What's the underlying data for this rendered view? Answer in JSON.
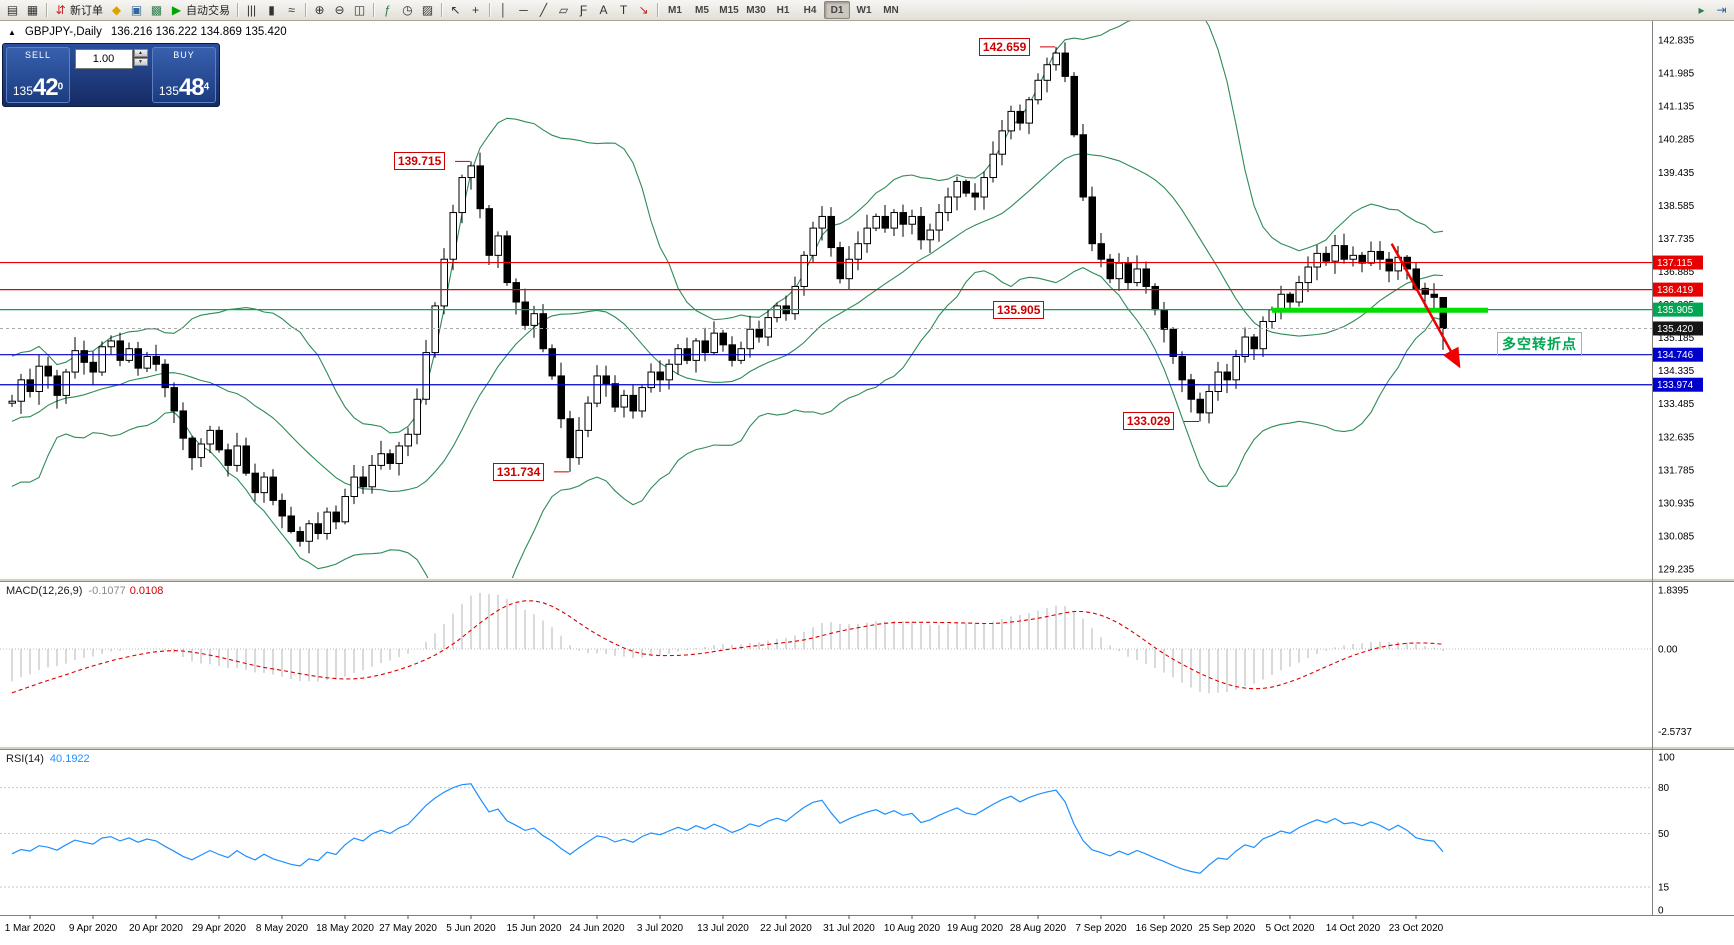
{
  "toolbar": {
    "items": [
      {
        "name": "new-chart-icon",
        "glyph": "▤"
      },
      {
        "name": "profiles-icon",
        "glyph": "▦"
      },
      {
        "sep": true
      },
      {
        "name": "new-order-button",
        "glyph": "⇵",
        "glyph_color": "#cc2222",
        "label": "新订单"
      },
      {
        "name": "metaeditor-icon",
        "glyph": "◆",
        "glyph_color": "#d9a300"
      },
      {
        "name": "terminal-icon",
        "glyph": "▣",
        "glyph_color": "#336699"
      },
      {
        "name": "strategy-tester-icon",
        "glyph": "▩",
        "glyph_color": "#2e7d4f"
      },
      {
        "name": "autotrading-button",
        "glyph": "▶",
        "glyph_color": "#00a400",
        "label": "自动交易"
      },
      {
        "sep": true
      },
      {
        "name": "bar-chart-icon",
        "glyph": "|||"
      },
      {
        "name": "candlestick-chart-icon",
        "glyph": "▮"
      },
      {
        "name": "line-chart-icon",
        "glyph": "≈"
      },
      {
        "sep": true
      },
      {
        "name": "zoom-in-icon",
        "glyph": "⊕"
      },
      {
        "name": "zoom-out-icon",
        "glyph": "⊖"
      },
      {
        "name": "tile-windows-icon",
        "glyph": "◫"
      },
      {
        "sep": true
      },
      {
        "name": "indicators-icon",
        "glyph": "ƒ",
        "glyph_color": "#2e7d4f"
      },
      {
        "name": "periods-icon",
        "glyph": "◷"
      },
      {
        "name": "templates-icon",
        "glyph": "▨"
      },
      {
        "sep": true
      },
      {
        "name": "cursor-icon",
        "glyph": "↖"
      },
      {
        "name": "crosshair-icon",
        "glyph": "+"
      },
      {
        "sep": true
      },
      {
        "name": "vertical-line-icon",
        "glyph": "│"
      },
      {
        "name": "horizontal-line-icon",
        "glyph": "─"
      },
      {
        "name": "trendline-icon",
        "glyph": "╱"
      },
      {
        "name": "channel-icon",
        "glyph": "▱"
      },
      {
        "name": "fibonacci-icon",
        "glyph": "Ƒ"
      },
      {
        "name": "text-icon",
        "glyph": "A"
      },
      {
        "name": "text-label-icon",
        "glyph": "T"
      },
      {
        "name": "arrows-icon",
        "glyph": "↘",
        "glyph_color": "#cc2222"
      },
      {
        "sep": true
      }
    ],
    "timeframes": [
      "M1",
      "M5",
      "M15",
      "M30",
      "H1",
      "H4",
      "D1",
      "W1",
      "MN"
    ],
    "active_timeframe": "D1",
    "right_items": [
      {
        "name": "auto-scroll-icon",
        "glyph": "▸",
        "glyph_color": "#2e7d4f"
      },
      {
        "name": "chart-shift-icon",
        "glyph": "⇥",
        "glyph_color": "#336699"
      }
    ]
  },
  "chart": {
    "collapse_icon": "▲",
    "symbol_period": "GBPJPY-,Daily",
    "ohlc_text": "136.216 136.222 134.869 135.420"
  },
  "trade_panel": {
    "sell_label": "SELL",
    "buy_label": "BUY",
    "volume": "1.00",
    "spin_up": "▲",
    "spin_down": "▼",
    "sell_price": {
      "prefix": "135",
      "big": "42",
      "sup": "0"
    },
    "buy_price": {
      "prefix": "135",
      "big": "48",
      "sup": "4"
    }
  },
  "indicators": {
    "macd": {
      "name": "MACD(12,26,9)",
      "main_value": "-0.1077",
      "signal_value": "0.0108",
      "axis": [
        {
          "v": 1.8395,
          "text": "1.8395"
        },
        {
          "v": 0,
          "text": "0.00"
        },
        {
          "v": -2.5737,
          "text": "-2.5737"
        }
      ],
      "histogram_color": "#b4b4b4",
      "signal_color": "#dd0000"
    },
    "rsi": {
      "name": "RSI(14)",
      "value": "40.1922",
      "axis": [
        {
          "v": 100,
          "text": "100"
        },
        {
          "v": 80,
          "text": "80"
        },
        {
          "v": 50,
          "text": "50"
        },
        {
          "v": 15,
          "text": "15"
        },
        {
          "v": 0,
          "text": "0"
        }
      ],
      "levels": [
        80,
        50,
        15
      ],
      "line_color": "#1e90ff"
    }
  },
  "price_axis": {
    "labels": [
      "142.835",
      "141.985",
      "141.135",
      "140.285",
      "139.435",
      "138.585",
      "137.735",
      "136.885",
      "136.035",
      "135.185",
      "134.335",
      "133.485",
      "132.635",
      "131.785",
      "130.935",
      "130.085",
      "129.235"
    ],
    "tags": [
      {
        "text": "137.115",
        "price": 137.115,
        "bg": "#e60000",
        "fg": "#ffffff"
      },
      {
        "text": "136.419",
        "price": 136.419,
        "bg": "#e60000",
        "fg": "#ffffff"
      },
      {
        "text": "135.905",
        "price": 135.905,
        "bg": "#00a651",
        "fg": "#ffffff"
      },
      {
        "text": "135.420",
        "price": 135.42,
        "bg": "#161616",
        "fg": "#ffffff"
      },
      {
        "text": "134.746",
        "price": 134.746,
        "bg": "#0000cc",
        "fg": "#ffffff"
      },
      {
        "text": "133.974",
        "price": 133.974,
        "bg": "#0000cc",
        "fg": "#ffffff"
      }
    ]
  },
  "time_axis": {
    "labels": [
      {
        "text": "1 Mar 2020",
        "i": 2
      },
      {
        "text": "9 Apr 2020",
        "i": 9
      },
      {
        "text": "20 Apr 2020",
        "i": 16
      },
      {
        "text": "29 Apr 2020",
        "i": 23
      },
      {
        "text": "8 May 2020",
        "i": 30
      },
      {
        "text": "18 May 2020",
        "i": 37
      },
      {
        "text": "27 May 2020",
        "i": 44
      },
      {
        "text": "5 Jun 2020",
        "i": 51
      },
      {
        "text": "15 Jun 2020",
        "i": 58
      },
      {
        "text": "24 Jun 2020",
        "i": 65
      },
      {
        "text": "3 Jul 2020",
        "i": 72
      },
      {
        "text": "13 Jul 2020",
        "i": 79
      },
      {
        "text": "22 Jul 2020",
        "i": 86
      },
      {
        "text": "31 Jul 2020",
        "i": 93
      },
      {
        "text": "10 Aug 2020",
        "i": 100
      },
      {
        "text": "19 Aug 2020",
        "i": 107
      },
      {
        "text": "28 Aug 2020",
        "i": 114
      },
      {
        "text": "7 Sep 2020",
        "i": 121
      },
      {
        "text": "16 Sep 2020",
        "i": 128
      },
      {
        "text": "25 Sep 2020",
        "i": 135
      },
      {
        "text": "5 Oct 2020",
        "i": 142
      },
      {
        "text": "14 Oct 2020",
        "i": 149
      },
      {
        "text": "23 Oct 2020",
        "i": 156
      }
    ]
  },
  "annotations": {
    "callouts": [
      {
        "text": "142.659",
        "i": 116,
        "price": 142.659,
        "side": "left"
      },
      {
        "text": "139.715",
        "i": 51,
        "price": 139.715,
        "side": "left"
      },
      {
        "text": "135.905",
        "i": 109,
        "price": 135.905,
        "side": "on"
      },
      {
        "text": "133.029",
        "i": 132,
        "price": 133.029,
        "side": "left"
      },
      {
        "text": "131.734",
        "i": 62,
        "price": 131.734,
        "side": "left"
      }
    ],
    "hlines": [
      {
        "price": 137.115,
        "color": "#e60000"
      },
      {
        "price": 136.419,
        "color": "#e60000"
      },
      {
        "price": 135.905,
        "color": "#00a651"
      },
      {
        "price": 134.746,
        "color": "#0000cc"
      },
      {
        "price": 133.974,
        "color": "#0000cc"
      }
    ],
    "bid_line": {
      "price": 135.42,
      "color": "#aaaaaa"
    },
    "green_segment": {
      "price": 135.89,
      "i1": 140,
      "i2": 164,
      "color": "#00dd00",
      "width": 5
    },
    "trend_arrow": {
      "i1": 153.3,
      "p1": 137.6,
      "i2": 160.8,
      "p2": 134.45,
      "color": "#ee0000"
    },
    "note": {
      "text": "多空转折点",
      "color": "#00a651",
      "i": 165,
      "price": 135.05
    }
  },
  "chart_data": {
    "type": "candlestick",
    "symbol": "GBPJPY-",
    "timeframe": "Daily",
    "bull_color": "#ffffff",
    "bear_color": "#000000",
    "outline_color": "#000000",
    "bollinger": {
      "period": 20,
      "deviation": 2,
      "color": "#2e8b57"
    },
    "warmup_closes": [
      142.0,
      140.5,
      138.0,
      135.0,
      131.5,
      129.8,
      130.5,
      132.0,
      133.5,
      132.0,
      130.8,
      131.5,
      132.8,
      134.2,
      133.5,
      132.8,
      133.4,
      134.0,
      133.5,
      133.0,
      133.4,
      133.8,
      133.3,
      132.9,
      133.2,
      133.5
    ],
    "closes": [
      133.55,
      134.1,
      133.8,
      134.45,
      134.2,
      133.7,
      134.3,
      134.85,
      134.55,
      134.3,
      134.95,
      135.1,
      134.6,
      134.9,
      134.4,
      134.7,
      134.5,
      133.9,
      133.3,
      132.6,
      132.1,
      132.45,
      132.8,
      132.3,
      131.9,
      132.4,
      131.7,
      131.2,
      131.6,
      131.0,
      130.6,
      130.2,
      129.95,
      130.4,
      130.15,
      130.7,
      130.45,
      131.1,
      131.6,
      131.35,
      131.9,
      132.2,
      131.95,
      132.4,
      132.7,
      133.6,
      134.8,
      136.0,
      137.2,
      138.4,
      139.3,
      139.6,
      138.5,
      137.3,
      137.8,
      136.6,
      136.1,
      135.5,
      135.8,
      134.9,
      134.2,
      133.1,
      132.1,
      132.8,
      133.5,
      134.2,
      134.0,
      133.4,
      133.7,
      133.3,
      133.9,
      134.3,
      134.1,
      134.5,
      134.9,
      134.6,
      135.1,
      134.8,
      135.3,
      135.0,
      134.6,
      134.9,
      135.4,
      135.2,
      135.7,
      136.0,
      135.8,
      136.5,
      137.3,
      138.0,
      138.3,
      137.5,
      136.7,
      137.2,
      137.6,
      138.0,
      138.3,
      138.0,
      138.4,
      138.1,
      138.3,
      137.7,
      137.95,
      138.4,
      138.8,
      139.2,
      138.9,
      138.8,
      139.3,
      139.9,
      140.5,
      141.0,
      140.7,
      141.3,
      141.8,
      142.2,
      142.5,
      141.9,
      140.4,
      138.8,
      137.6,
      137.2,
      136.7,
      137.1,
      136.6,
      136.95,
      136.5,
      135.9,
      135.4,
      134.7,
      134.1,
      133.6,
      133.25,
      133.8,
      134.3,
      134.1,
      134.7,
      135.2,
      134.9,
      135.6,
      135.9,
      136.3,
      136.1,
      136.6,
      137.0,
      137.35,
      137.15,
      137.55,
      137.2,
      137.3,
      137.1,
      137.4,
      137.2,
      136.9,
      137.25,
      136.95,
      136.45,
      136.3,
      136.22,
      135.42
    ],
    "pinned": [
      {
        "i": 51,
        "high": 139.715
      },
      {
        "i": 116,
        "high": 142.659
      },
      {
        "i": 62,
        "low": 131.734
      },
      {
        "i": 132,
        "low": 133.029
      }
    ],
    "last_candle": {
      "open": 136.216,
      "high": 136.222,
      "low": 134.869,
      "close": 135.42
    }
  }
}
